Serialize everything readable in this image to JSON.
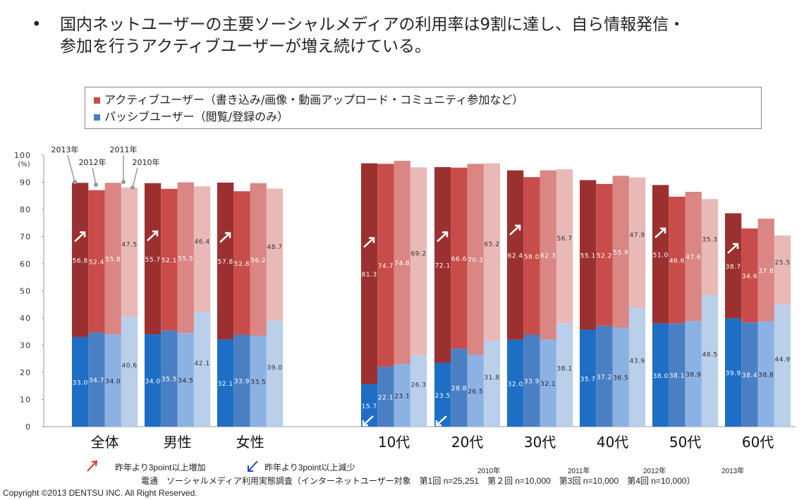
{
  "headline": {
    "bullet": "•",
    "line1": "国内ネットユーザーの主要ソーシャルメディアの利用率は9割に達し、自ら情報発信・",
    "line2": "参加を行うアクティブユーザーが増え続けている。"
  },
  "legend": {
    "active": "アクティブユーザー（書き込み/画像・動画アップロード・コミュニティ参加など）",
    "passive": "パッシブユーザー（閲覧/登録のみ）"
  },
  "colors": {
    "active": [
      "#9a3130",
      "#c84c49",
      "#d98684",
      "#e9b9b8"
    ],
    "passive": [
      "#1e6ec6",
      "#4a80c3",
      "#8cb2e3",
      "#b9cfea"
    ],
    "up_legend": "#e0302a",
    "down_legend": "#2343d0"
  },
  "chart_data": {
    "type": "stacked-bar",
    "ylim": [
      0,
      100
    ],
    "yticks": [
      "0",
      "10",
      "20",
      "30",
      "40",
      "50",
      "60",
      "70",
      "80",
      "90",
      "100"
    ],
    "yunit": "(%)",
    "years": [
      "2013年",
      "2012年",
      "2011年",
      "2010年"
    ],
    "categories": [
      "全体",
      "男性",
      "女性",
      "10代",
      "20代",
      "30代",
      "40代",
      "50代",
      "60代"
    ],
    "series": [
      {
        "name": "パッシブユーザー（閲覧/登録のみ）",
        "values": [
          [
            33.0,
            34.7,
            34.0,
            40.6
          ],
          [
            34.0,
            35.5,
            34.5,
            42.1
          ],
          [
            32.1,
            33.9,
            33.5,
            39.0
          ],
          [
            15.7,
            22.1,
            23.1,
            26.3
          ],
          [
            23.5,
            28.8,
            26.5,
            31.8
          ],
          [
            32.0,
            33.9,
            32.1,
            38.1
          ],
          [
            35.7,
            37.2,
            36.5,
            43.9
          ],
          [
            38.0,
            38.1,
            38.9,
            48.5
          ],
          [
            39.9,
            38.4,
            38.8,
            44.9
          ]
        ]
      },
      {
        "name": "アクティブユーザー（書き込み/画像・動画アップロード・コミュニティ参加など）",
        "values": [
          [
            56.8,
            52.4,
            55.8,
            47.5
          ],
          [
            55.7,
            52.1,
            55.5,
            46.4
          ],
          [
            57.8,
            52.8,
            56.2,
            48.7
          ],
          [
            81.3,
            74.7,
            74.8,
            69.2
          ],
          [
            72.1,
            66.6,
            70.3,
            65.2
          ],
          [
            62.4,
            58.0,
            62.3,
            56.7
          ],
          [
            55.1,
            52.2,
            55.9,
            47.9
          ],
          [
            51.0,
            46.6,
            47.6,
            35.3
          ],
          [
            38.7,
            34.6,
            37.8,
            25.5
          ]
        ]
      }
    ],
    "up_arrows": [
      "全体",
      "男性",
      "女性",
      "10代",
      "20代",
      "30代",
      "50代",
      "60代"
    ],
    "down_arrows": [
      "10代",
      "20代"
    ]
  },
  "footer": {
    "up_note": "昨年より3point以上増加",
    "down_note": "昨年より3point以上減少",
    "survey": "電通　ソーシャルメディア利用実態調査（インターネットユーザー対象　第1回 n=25,251　第２回 n=10,000　第3回 n=10,000　第4回 n=10,000）",
    "years": [
      "2010年",
      "2011年",
      "2012年",
      "2013年"
    ],
    "copyright": "Copyright ©2013 DENTSU INC. All Right Reserved."
  }
}
